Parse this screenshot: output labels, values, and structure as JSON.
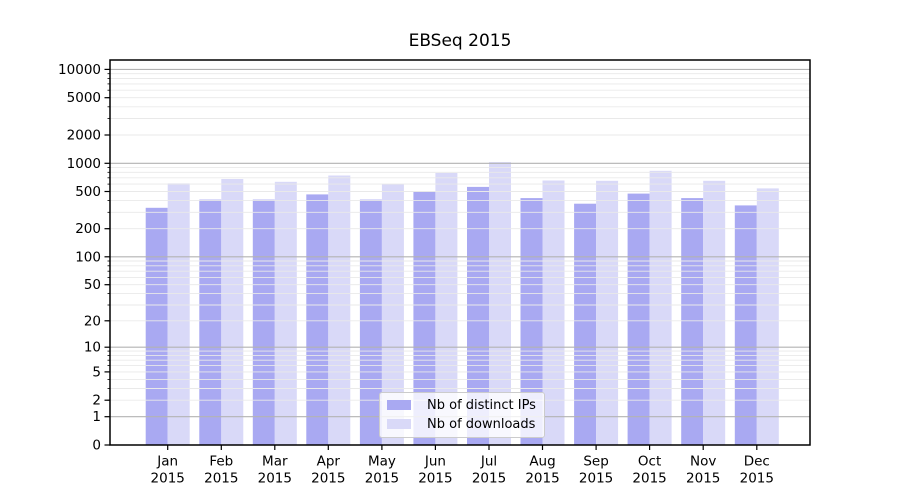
{
  "figure": {
    "background": "#ffffff",
    "axis_color": "#000000",
    "text_color": "#000000"
  },
  "chart_data": {
    "type": "bar",
    "title": "EBSeq 2015",
    "x_labels": [
      [
        "Jan",
        "2015"
      ],
      [
        "Feb",
        "2015"
      ],
      [
        "Mar",
        "2015"
      ],
      [
        "Apr",
        "2015"
      ],
      [
        "May",
        "2015"
      ],
      [
        "Jun",
        "2015"
      ],
      [
        "Jul",
        "2015"
      ],
      [
        "Aug",
        "2015"
      ],
      [
        "Sep",
        "2015"
      ],
      [
        "Oct",
        "2015"
      ],
      [
        "Nov",
        "2015"
      ],
      [
        "Dec",
        "2015"
      ]
    ],
    "series": [
      {
        "name": "Nb of distinct IPs",
        "color": "#a9a9f2",
        "values": [
          335,
          410,
          410,
          465,
          410,
          495,
          560,
          425,
          370,
          475,
          425,
          355
        ]
      },
      {
        "name": "Nb of downloads",
        "color": "#d9d9f8",
        "values": [
          610,
          680,
          635,
          740,
          600,
          790,
          1030,
          655,
          650,
          830,
          650,
          540
        ]
      }
    ],
    "y_ticks": [
      0,
      1,
      2,
      5,
      10,
      20,
      50,
      100,
      200,
      500,
      1000,
      2000,
      5000,
      10000
    ],
    "y_scale": "log1p",
    "y_range": [
      0,
      12600
    ],
    "grid": {
      "on": true,
      "major_values": [
        1,
        10,
        100,
        1000,
        10000
      ],
      "major_color": "#b3b3b3",
      "minor_color": "#e9e9e9"
    },
    "legend": {
      "position": "lower center"
    }
  }
}
